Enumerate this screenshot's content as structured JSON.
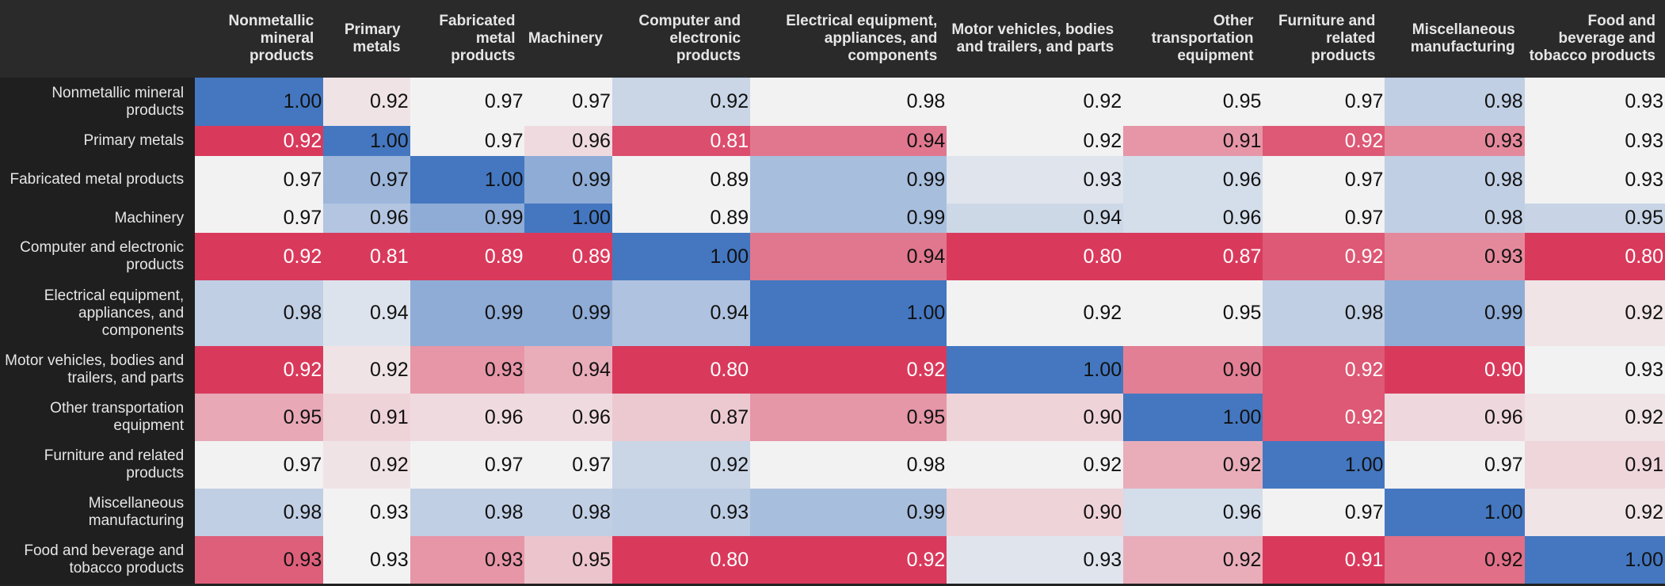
{
  "chart_data": {
    "type": "heatmap",
    "x_labels": [
      "Nonmetallic mineral products",
      "Primary metals",
      "Fabricated metal products",
      "Machinery",
      "Computer and electronic products",
      "Electrical equipment, appliances, and components",
      "Motor vehicles, bodies and trailers, and parts",
      "Other transportation equipment",
      "Furniture and related products",
      "Miscellaneous manufacturing",
      "Food and beverage and tobacco products"
    ],
    "y_labels": [
      "Nonmetallic mineral products",
      "Primary metals",
      "Fabricated metal products",
      "Machinery",
      "Computer and electronic products",
      "Electrical equipment, appliances, and components",
      "Motor vehicles, bodies and trailers, and parts",
      "Other transportation equipment",
      "Furniture and related products",
      "Miscellaneous manufacturing",
      "Food and beverage and tobacco products"
    ],
    "values": [
      [
        1.0,
        0.92,
        0.97,
        0.97,
        0.92,
        0.98,
        0.92,
        0.95,
        0.97,
        0.98,
        0.93
      ],
      [
        0.92,
        1.0,
        0.97,
        0.96,
        0.81,
        0.94,
        0.92,
        0.91,
        0.92,
        0.93,
        0.93
      ],
      [
        0.97,
        0.97,
        1.0,
        0.99,
        0.89,
        0.99,
        0.93,
        0.96,
        0.97,
        0.98,
        0.93
      ],
      [
        0.97,
        0.96,
        0.99,
        1.0,
        0.89,
        0.99,
        0.94,
        0.96,
        0.97,
        0.98,
        0.95
      ],
      [
        0.92,
        0.81,
        0.89,
        0.89,
        1.0,
        0.94,
        0.8,
        0.87,
        0.92,
        0.93,
        0.8
      ],
      [
        0.98,
        0.94,
        0.99,
        0.99,
        0.94,
        1.0,
        0.92,
        0.95,
        0.98,
        0.99,
        0.92
      ],
      [
        0.92,
        0.92,
        0.93,
        0.94,
        0.8,
        0.92,
        1.0,
        0.9,
        0.92,
        0.9,
        0.93
      ],
      [
        0.95,
        0.91,
        0.96,
        0.96,
        0.87,
        0.95,
        0.9,
        1.0,
        0.92,
        0.96,
        0.92
      ],
      [
        0.97,
        0.92,
        0.97,
        0.97,
        0.92,
        0.98,
        0.92,
        0.92,
        1.0,
        0.97,
        0.91
      ],
      [
        0.98,
        0.93,
        0.98,
        0.98,
        0.93,
        0.99,
        0.9,
        0.96,
        0.97,
        1.0,
        0.92
      ],
      [
        0.93,
        0.93,
        0.93,
        0.95,
        0.8,
        0.92,
        0.93,
        0.92,
        0.91,
        0.92,
        1.0
      ]
    ],
    "colors": {
      "high": "#4477c0",
      "neutral": "#f2f2f2",
      "low": "#d93a5c",
      "header_bg": "#2a2a2a",
      "row_header_bg": "#1f1f1f",
      "header_text": "#e6e6e6"
    }
  }
}
